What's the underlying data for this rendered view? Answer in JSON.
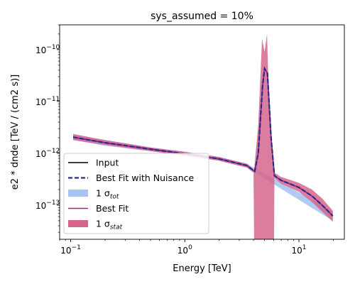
{
  "chart_data": {
    "type": "line",
    "title": "sys_assumed = 10%",
    "xlabel": "Energy [TeV]",
    "ylabel": "e2 * dnde [TeV / (cm2 s)]",
    "xscale": "log",
    "yscale": "log",
    "xlim": [
      0.08,
      25
    ],
    "ylim": [
      2.2e-14,
      3e-10
    ],
    "xticks": [
      {
        "value": 0.1,
        "label": "10",
        "exp": "−1"
      },
      {
        "value": 1,
        "label": "10",
        "exp": "0"
      },
      {
        "value": 10,
        "label": "10",
        "exp": "1"
      }
    ],
    "yticks": [
      {
        "value": 1e-13,
        "label": "10",
        "exp": "−13"
      },
      {
        "value": 1e-12,
        "label": "10",
        "exp": "−12"
      },
      {
        "value": 1e-11,
        "label": "10",
        "exp": "−11"
      },
      {
        "value": 1e-10,
        "label": "10",
        "exp": "−10"
      }
    ],
    "grid": false,
    "legend_position": "lower-left",
    "x": [
      0.105,
      0.2,
      0.5,
      1.0,
      2.0,
      3.5,
      4.1,
      4.4,
      4.8,
      5.0,
      5.3,
      5.7,
      6.1,
      7.0,
      10.0,
      13.0,
      16.0,
      19.8
    ],
    "series": [
      {
        "name": "Input",
        "style": "solid",
        "color": "#000000",
        "y": [
          2.05e-12,
          1.6e-12,
          1.2e-12,
          9.8e-13,
          7.8e-13,
          5.8e-13,
          4.5e-13,
          1e-12,
          2e-11,
          4.3e-11,
          3.5e-11,
          2e-12,
          3.7e-13,
          3e-13,
          2.2e-13,
          1.5e-13,
          1e-13,
          6.2e-14
        ]
      },
      {
        "name": "Best Fit with Nuisance",
        "style": "dashed",
        "color": "#1f2f8a",
        "y": [
          2.05e-12,
          1.6e-12,
          1.2e-12,
          9.8e-13,
          7.8e-13,
          5.8e-13,
          4.5e-13,
          1e-12,
          2e-11,
          4.3e-11,
          3.5e-11,
          2e-12,
          3.7e-13,
          3e-13,
          2.2e-13,
          1.5e-13,
          1e-13,
          6.2e-14
        ]
      },
      {
        "name": "Best Fit",
        "style": "solid",
        "color": "#b5178a",
        "y": [
          2.05e-12,
          1.6e-12,
          1.2e-12,
          9.8e-13,
          7.8e-13,
          5.8e-13,
          4.5e-13,
          1e-12,
          2e-11,
          4.3e-11,
          3.5e-11,
          2e-12,
          3.7e-13,
          3e-13,
          2.2e-13,
          1.5e-13,
          1e-13,
          6.2e-14
        ]
      }
    ],
    "bands": [
      {
        "name": "1 σ_tot",
        "color": "#a8c4f0",
        "x": [
          0.105,
          0.2,
          0.5,
          1.0,
          2.0,
          3.5,
          19.8
        ],
        "lower": [
          1.8e-12,
          1.4e-12,
          1.1e-12,
          9e-13,
          7.2e-13,
          5.3e-13,
          5e-14
        ],
        "upper": [
          2.3e-12,
          1.8e-12,
          1.3e-12,
          1.07e-12,
          8.5e-13,
          6.3e-13,
          7.6e-14
        ]
      },
      {
        "name": "1 σ_stat",
        "color": "#d6658e",
        "x": [
          0.105,
          0.2,
          0.5,
          1.0,
          2.0,
          3.5,
          4.0,
          4.05,
          4.4,
          4.75,
          5.0,
          5.25,
          5.5,
          5.7,
          6.05,
          6.1,
          7.0,
          10.0,
          13.0,
          16.0,
          19.8
        ],
        "lower": [
          1.8e-12,
          1.45e-12,
          1.1e-12,
          9e-13,
          7.2e-13,
          5.3e-13,
          4.2e-13,
          2.2e-14,
          2.2e-14,
          2.2e-14,
          2.2e-14,
          2.2e-14,
          2.2e-14,
          2.2e-14,
          2.2e-14,
          3.3e-13,
          2.6e-13,
          1.8e-13,
          1.15e-13,
          7.5e-14,
          4.8e-14
        ],
        "upper": [
          2.35e-12,
          1.8e-12,
          1.3e-12,
          1.07e-12,
          8.5e-13,
          6.3e-13,
          4.9e-13,
          5e-13,
          3.5e-12,
          1.6e-10,
          9e-11,
          2e-10,
          6e-12,
          1.5e-12,
          6e-13,
          4.2e-13,
          3.5e-13,
          2.7e-13,
          2e-13,
          1.35e-13,
          7.8e-14
        ]
      }
    ],
    "legend": [
      {
        "kind": "line",
        "style": "solid",
        "color": "#000000",
        "label": "Input",
        "sub": ""
      },
      {
        "kind": "line",
        "style": "dashed",
        "color": "#1f2f8a",
        "label": "Best Fit with Nuisance",
        "sub": ""
      },
      {
        "kind": "patch",
        "color": "#a8c4f0",
        "label": "1 σ",
        "sub": "tot"
      },
      {
        "kind": "line",
        "style": "solid",
        "color": "#b5178a",
        "label": "Best Fit",
        "sub": ""
      },
      {
        "kind": "patch",
        "color": "#d6658e",
        "label": "1 σ",
        "sub": "stat"
      }
    ]
  }
}
